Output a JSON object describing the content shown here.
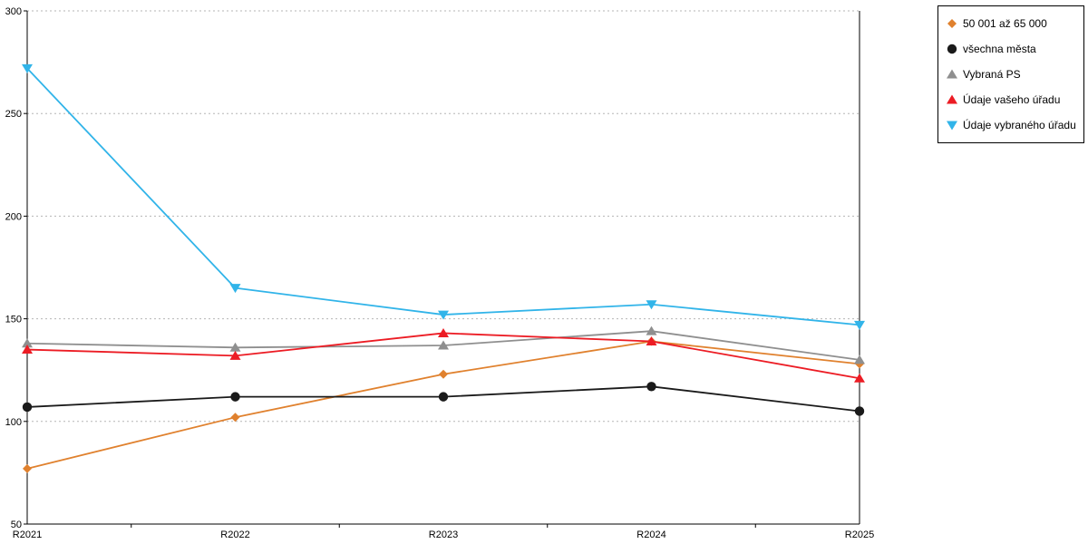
{
  "chart_data": {
    "type": "line",
    "title": "",
    "xlabel": "",
    "ylabel": "",
    "x": [
      "R2021",
      "R2022",
      "R2023",
      "R2024",
      "R2025"
    ],
    "ylim": [
      50,
      300
    ],
    "ytick_step": 50,
    "grid": "horizontal-dotted",
    "legend_position": "top-right-outside",
    "series": [
      {
        "name": "50 001 až 65 000",
        "color": "#e0812e",
        "marker": "diamond",
        "values": [
          77,
          102,
          123,
          139,
          128
        ]
      },
      {
        "name": "všechna města",
        "color": "#1a1a1a",
        "marker": "circle",
        "values": [
          107,
          112,
          112,
          117,
          105
        ]
      },
      {
        "name": "Vybraná PS",
        "color": "#8f8f8f",
        "marker": "triangle-up",
        "values": [
          138,
          136,
          137,
          144,
          130
        ]
      },
      {
        "name": "Údaje vašeho úřadu",
        "color": "#ec1c24",
        "marker": "triangle-up",
        "values": [
          135,
          132,
          143,
          139,
          121
        ]
      },
      {
        "name": "Údaje vybraného úřadu",
        "color": "#31b4e9",
        "marker": "triangle-down",
        "values": [
          272,
          165,
          152,
          157,
          147
        ]
      }
    ]
  },
  "colors": {
    "background": "#ffffff",
    "grid": "#b5b5b5",
    "axis": "#000000"
  }
}
